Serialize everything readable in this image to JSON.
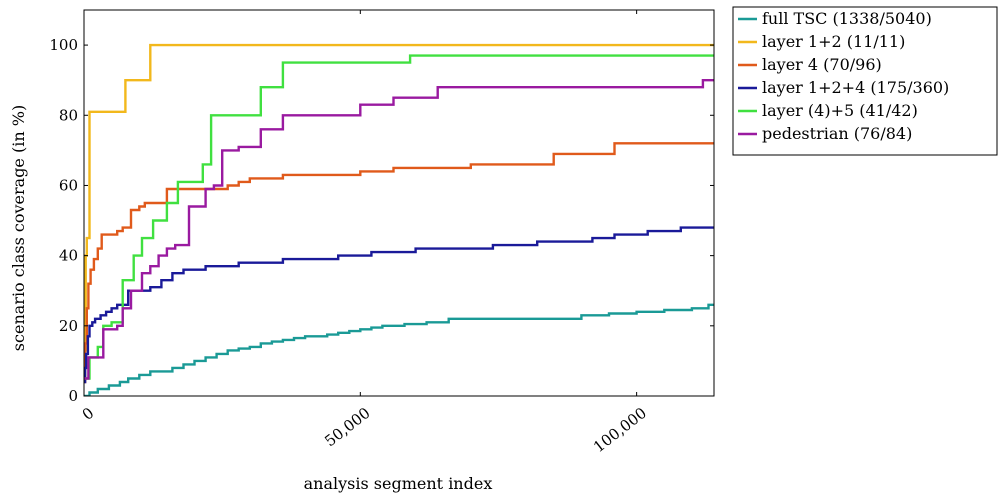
{
  "chart_data": {
    "type": "line",
    "title": "",
    "xlabel": "analysis segment index",
    "ylabel": "scenario class coverage (in %)",
    "xlim": [
      0,
      114000
    ],
    "ylim": [
      0,
      110
    ],
    "x_ticks": [
      {
        "value": 0,
        "label": "0"
      },
      {
        "value": 50000,
        "label": "50,000"
      },
      {
        "value": 100000,
        "label": "100,000"
      }
    ],
    "y_ticks": [
      {
        "value": 0,
        "label": "0"
      },
      {
        "value": 20,
        "label": "20"
      },
      {
        "value": 40,
        "label": "40"
      },
      {
        "value": 60,
        "label": "60"
      },
      {
        "value": 80,
        "label": "80"
      },
      {
        "value": 100,
        "label": "100"
      }
    ],
    "grid": false,
    "legend_position": "outside-right",
    "series": [
      {
        "name": "full TSC (1338/5040)",
        "color": "#1a9a96",
        "x": [
          0,
          1000,
          2500,
          4500,
          6500,
          8000,
          10000,
          12000,
          14000,
          16000,
          18000,
          20000,
          22000,
          24000,
          26000,
          28000,
          30000,
          32000,
          34000,
          36000,
          38000,
          40000,
          42000,
          44000,
          46000,
          48000,
          50000,
          52000,
          54000,
          58000,
          62000,
          66000,
          70000,
          75000,
          80000,
          85000,
          90000,
          95000,
          100000,
          105000,
          110000,
          113000,
          114000
        ],
        "y": [
          0,
          1,
          2,
          3,
          4,
          5,
          6,
          7,
          7,
          8,
          9,
          10,
          11,
          12,
          13,
          13.5,
          14,
          15,
          15.5,
          16,
          16.5,
          17,
          17,
          17.5,
          18,
          18.5,
          19,
          19.5,
          20,
          20.5,
          21,
          22,
          22,
          22,
          22,
          22,
          23,
          23.5,
          24,
          24.5,
          25,
          26,
          26
        ]
      },
      {
        "name": "layer 1+2 (11/11)",
        "color": "#f2b81c",
        "x": [
          0,
          300,
          500,
          1000,
          1500,
          7500,
          12000,
          114000
        ],
        "y": [
          13,
          40,
          45,
          81,
          81,
          90,
          100,
          100
        ]
      },
      {
        "name": "layer 4 (70/96)",
        "color": "#e05a1b",
        "x": [
          0,
          200,
          500,
          800,
          1200,
          1800,
          2500,
          3200,
          4500,
          6000,
          7000,
          8500,
          10000,
          11000,
          13000,
          15000,
          20000,
          26000,
          28000,
          30000,
          36000,
          42000,
          50000,
          56000,
          63000,
          70000,
          78000,
          82000,
          85000,
          90000,
          94000,
          96000,
          105000,
          114000
        ],
        "y": [
          4,
          15,
          25,
          32,
          36,
          39,
          42,
          46,
          46,
          47,
          48,
          53,
          54,
          55,
          55,
          59,
          59,
          60,
          61,
          62,
          63,
          63,
          64,
          65,
          65,
          66,
          66,
          66,
          69,
          69,
          69,
          72,
          72,
          72
        ]
      },
      {
        "name": "layer 1+2+4 (175/360)",
        "color": "#1a1a99",
        "x": [
          0,
          200,
          400,
          700,
          1000,
          1500,
          2000,
          3000,
          4000,
          5000,
          6000,
          6500,
          8000,
          12000,
          14000,
          16000,
          18000,
          20000,
          22000,
          28000,
          32000,
          36000,
          40000,
          46000,
          52000,
          56000,
          60000,
          66000,
          74000,
          82000,
          88000,
          92000,
          96000,
          102000,
          108000,
          114000
        ],
        "y": [
          4,
          8,
          12,
          17,
          20,
          21,
          22,
          23,
          24,
          25,
          26,
          26,
          30,
          31,
          33,
          35,
          36,
          36,
          37,
          38,
          38,
          39,
          39,
          40,
          41,
          41,
          42,
          42,
          43,
          44,
          44,
          45,
          46,
          47,
          48,
          48
        ]
      },
      {
        "name": "layer (4)+5 (41/42)",
        "color": "#40e040",
        "x": [
          0,
          1000,
          2500,
          3500,
          5000,
          7000,
          9000,
          10500,
          12500,
          15000,
          17000,
          20000,
          21500,
          23000,
          29000,
          32000,
          36000,
          44000,
          52000,
          59000,
          66000,
          80000,
          100000,
          114000
        ],
        "y": [
          5,
          11,
          14,
          20,
          21,
          33,
          40,
          45,
          50,
          55,
          61,
          61,
          66,
          80,
          80,
          88,
          95,
          95,
          95,
          97,
          97,
          97,
          97,
          97
        ]
      },
      {
        "name": "pedestrian (76/84)",
        "color": "#9a1aa0",
        "x": [
          0,
          800,
          3500,
          6000,
          7000,
          8500,
          10500,
          12000,
          13500,
          15000,
          16500,
          19000,
          22000,
          23500,
          25000,
          28000,
          32000,
          36000,
          43000,
          50000,
          56000,
          64000,
          72000,
          84000,
          100000,
          112000,
          114000
        ],
        "y": [
          5,
          11,
          19,
          20,
          25,
          30,
          35,
          37,
          40,
          42,
          43,
          54,
          59,
          60,
          70,
          71,
          76,
          80,
          80,
          83,
          85,
          88,
          88,
          88,
          88,
          90,
          90
        ]
      }
    ]
  }
}
